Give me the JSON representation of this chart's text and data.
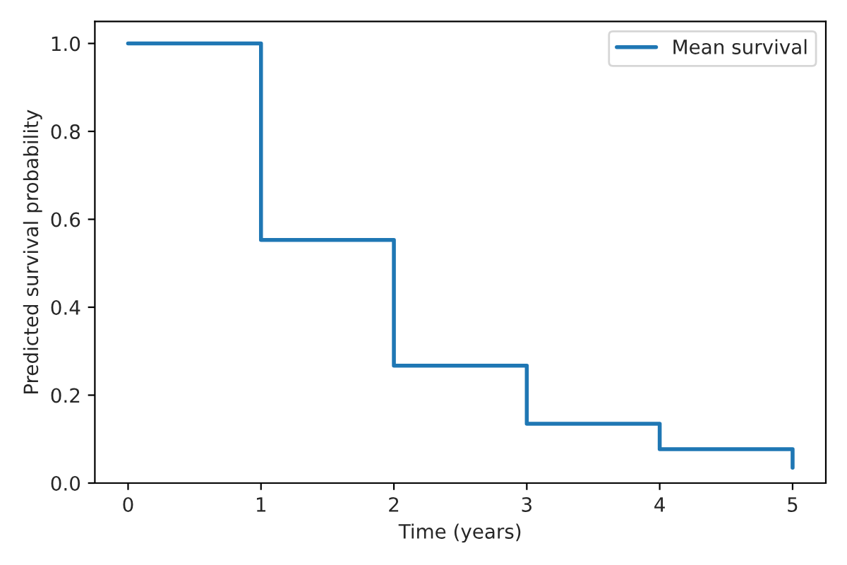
{
  "chart_data": {
    "type": "step",
    "xlabel": "Time (years)",
    "ylabel": "Predicted survival probability",
    "x": [
      0,
      1,
      2,
      3,
      4,
      5
    ],
    "series": [
      {
        "name": "Mean survival",
        "color": "#1f77b4",
        "values": [
          1.0,
          0.553,
          0.267,
          0.135,
          0.077,
          0.035
        ]
      }
    ],
    "xlim": [
      -0.25,
      5.25
    ],
    "ylim": [
      0,
      1.05
    ],
    "xticks": [
      0,
      1,
      2,
      3,
      4,
      5
    ],
    "yticks": [
      {
        "value": 0,
        "label": "0.0"
      },
      {
        "value": 0.2,
        "label": "0.2"
      },
      {
        "value": 0.4,
        "label": "0.4"
      },
      {
        "value": 0.6,
        "label": "0.6"
      },
      {
        "value": 0.8,
        "label": "0.8"
      },
      {
        "value": 1.0,
        "label": "1.0"
      }
    ],
    "grid": false,
    "legend": "top right"
  }
}
